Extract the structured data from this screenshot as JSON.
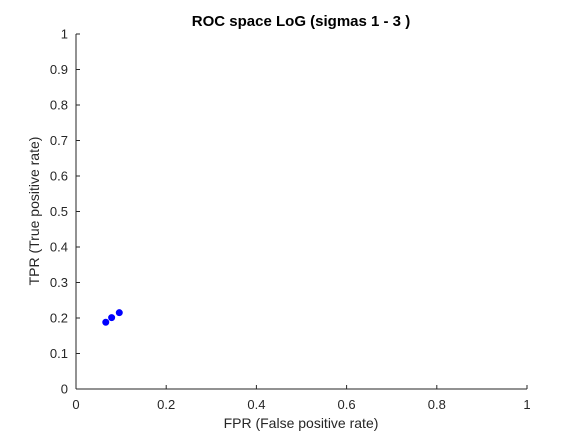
{
  "chart_data": {
    "type": "scatter",
    "title": "ROC space LoG (sigmas 1 - 3 )",
    "xlabel": "FPR (False positive rate)",
    "ylabel": "TPR (True positive rate)",
    "xlim": [
      0,
      1
    ],
    "ylim": [
      0,
      1
    ],
    "xticks": [
      0,
      0.2,
      0.4,
      0.6,
      0.8,
      1
    ],
    "xtick_labels": [
      "0",
      "0.2",
      "0.4",
      "0.6",
      "0.8",
      "1"
    ],
    "yticks": [
      0,
      0.1,
      0.2,
      0.3,
      0.4,
      0.5,
      0.6,
      0.7,
      0.8,
      0.9,
      1
    ],
    "ytick_labels": [
      "0",
      "0.1",
      "0.2",
      "0.3",
      "0.4",
      "0.5",
      "0.6",
      "0.7",
      "0.8",
      "0.9",
      "1"
    ],
    "grid": false,
    "box": "left-bottom axes only",
    "series": [
      {
        "marker": "filled-circle",
        "color": "#0000ff",
        "points": [
          {
            "x": 0.066,
            "y": 0.188
          },
          {
            "x": 0.079,
            "y": 0.201
          },
          {
            "x": 0.096,
            "y": 0.215
          }
        ]
      }
    ]
  },
  "colors": {
    "axis": "#262626",
    "marker": "#0000ff",
    "background": "#ffffff"
  }
}
